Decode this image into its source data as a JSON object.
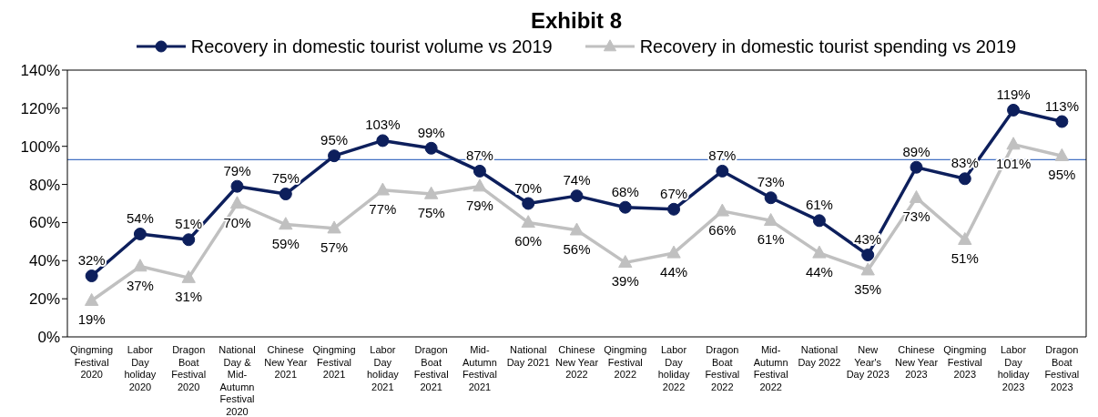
{
  "chart_data": {
    "type": "line",
    "title": "Exhibit 8",
    "categories": [
      "Qingming Festival 2020",
      "Labor Day holiday 2020",
      "Dragon Boat Festival 2020",
      "National Day & Mid-Autumn Festival 2020",
      "Chinese New Year 2021",
      "Qingming Festival 2021",
      "Labor Day holiday 2021",
      "Dragon Boat Festival 2021",
      "Mid-Autumn Festival 2021",
      "National Day 2021",
      "Chinese New Year 2022",
      "Qingming Festival 2022",
      "Labor Day holiday 2022",
      "Dragon Boat Festival 2022",
      "Mid-Autumn Festival 2022",
      "National Day 2022",
      "New Year's Day 2023",
      "Chinese New Year 2023",
      "Qingming Festival 2023",
      "Labor Day holiday 2023",
      "Dragon Boat Festival 2023"
    ],
    "series": [
      {
        "name": "Recovery in domestic tourist volume vs 2019",
        "color": "#0d1f5c",
        "marker": "circle",
        "values": [
          32,
          54,
          51,
          79,
          75,
          95,
          103,
          99,
          87,
          70,
          74,
          68,
          67,
          87,
          73,
          61,
          43,
          89,
          83,
          119,
          113
        ],
        "value_labels": [
          "32%",
          "54%",
          "51%",
          "79%",
          "75%",
          "95%",
          "103%",
          "99%",
          "87%",
          "70%",
          "74%",
          "68%",
          "67%",
          "87%",
          "73%",
          "61%",
          "43%",
          "89%",
          "83%",
          "119%",
          "113%"
        ]
      },
      {
        "name": "Recovery in domestic tourist spending vs 2019",
        "color": "#c0c0c0",
        "marker": "triangle",
        "values": [
          19,
          37,
          31,
          70,
          59,
          57,
          77,
          75,
          79,
          60,
          56,
          39,
          44,
          66,
          61,
          44,
          35,
          73,
          51,
          101,
          95
        ],
        "value_labels": [
          "19%",
          "37%",
          "31%",
          "70%",
          "59%",
          "57%",
          "77%",
          "75%",
          "79%",
          "60%",
          "56%",
          "39%",
          "44%",
          "66%",
          "61%",
          "44%",
          "35%",
          "73%",
          "51%",
          "101%",
          "95%"
        ]
      }
    ],
    "ylim": [
      0,
      140
    ],
    "yticks": [
      {
        "value": 0,
        "label": "0%"
      },
      {
        "value": 20,
        "label": "20%"
      },
      {
        "value": 40,
        "label": "40%"
      },
      {
        "value": 60,
        "label": "60%"
      },
      {
        "value": 80,
        "label": "80%"
      },
      {
        "value": 100,
        "label": "100%"
      },
      {
        "value": 120,
        "label": "120%"
      },
      {
        "value": 140,
        "label": "140%"
      }
    ],
    "ref_lines": [
      {
        "axis": "y",
        "value": 93,
        "color": "#4472c4"
      }
    ],
    "grid": false,
    "legend": "top",
    "line_style": "solid"
  }
}
